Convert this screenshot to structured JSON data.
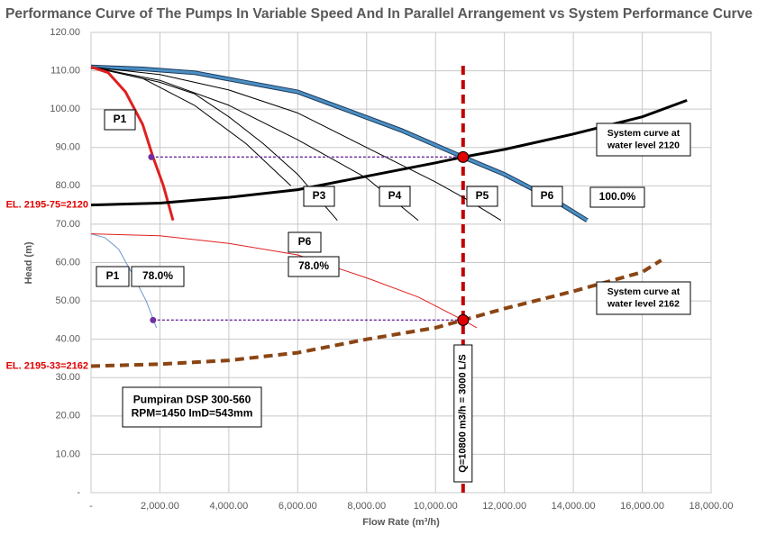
{
  "chart_data": {
    "type": "line",
    "title": "Performance Curve of The Pumps In Variable Speed And In Parallel Arrangement vs System Performance Curve",
    "xlabel": "Flow Rate (m³/h)",
    "ylabel": "Head (m)",
    "xlim": [
      0,
      18000
    ],
    "ylim": [
      0,
      120
    ],
    "grid": true,
    "xticks": [
      {
        "value": 0,
        "label": "-"
      },
      {
        "value": 2000,
        "label": "2,000.00"
      },
      {
        "value": 4000,
        "label": "4,000.00"
      },
      {
        "value": 6000,
        "label": "6,000.00"
      },
      {
        "value": 8000,
        "label": "8,000.00"
      },
      {
        "value": 10000,
        "label": "10,000.00"
      },
      {
        "value": 12000,
        "label": "12,000.00"
      },
      {
        "value": 14000,
        "label": "14,000.00"
      },
      {
        "value": 16000,
        "label": "16,000.00"
      },
      {
        "value": 18000,
        "label": "18,000.00"
      }
    ],
    "yticks": [
      {
        "value": 0,
        "label": "-"
      },
      {
        "value": 10,
        "label": "10.00"
      },
      {
        "value": 20,
        "label": "20.00"
      },
      {
        "value": 30,
        "label": "30.00"
      },
      {
        "value": 40,
        "label": "40.00"
      },
      {
        "value": 50,
        "label": "50.00"
      },
      {
        "value": 60,
        "label": "60.00"
      },
      {
        "value": 70,
        "label": "70.00"
      },
      {
        "value": 80,
        "label": "80.00"
      },
      {
        "value": 90,
        "label": "90.00"
      },
      {
        "value": 100,
        "label": "100.00"
      },
      {
        "value": 110,
        "label": "110.00"
      },
      {
        "value": 120,
        "label": "120.00"
      }
    ],
    "series": [
      {
        "color": "#4a8fc4",
        "style": "outlined",
        "x": [
          0,
          1500,
          3000,
          4500,
          6000,
          7500,
          9000,
          10800,
          12000,
          13500,
          14400
        ],
        "values": [
          111,
          110.5,
          109.5,
          107,
          104.5,
          99.5,
          94.5,
          87.5,
          83,
          76,
          71
        ]
      },
      {
        "color": "#000000",
        "style": "thin",
        "x": [
          0,
          2000,
          4000,
          6000,
          8000,
          10000,
          11000,
          11900
        ],
        "values": [
          111,
          109,
          105,
          99,
          90,
          81,
          76,
          71
        ]
      },
      {
        "color": "#000000",
        "style": "thin",
        "x": [
          0,
          2000,
          4000,
          6000,
          8000,
          9500
        ],
        "values": [
          111,
          107.5,
          101,
          92,
          82,
          71
        ]
      },
      {
        "color": "#000000",
        "style": "thin",
        "x": [
          0,
          2000,
          3000,
          4000,
          5000,
          6000,
          7150
        ],
        "values": [
          111,
          107,
          104,
          98,
          91,
          83,
          71
        ]
      },
      {
        "color": "#000000",
        "style": "thin",
        "x": [
          0,
          1500,
          3000,
          4500,
          5800
        ],
        "values": [
          111,
          108,
          101,
          91,
          80
        ]
      },
      {
        "color": "#e02020",
        "style": "thick",
        "x": [
          0,
          500,
          1000,
          1500,
          1800,
          2100,
          2380
        ],
        "values": [
          111,
          109.5,
          104.5,
          96,
          87.5,
          80,
          71
        ]
      },
      {
        "color": "#6f96d0",
        "style": "thin",
        "x": [
          0,
          400,
          800,
          1200,
          1600,
          1900
        ],
        "values": [
          67.5,
          66.5,
          63.5,
          57,
          50,
          43
        ]
      },
      {
        "color": "#e02020",
        "style": "thin",
        "x": [
          0,
          2000,
          4000,
          6000,
          8000,
          9500,
          10800,
          11200
        ],
        "values": [
          67.5,
          67,
          65,
          62,
          56,
          51,
          45,
          43
        ]
      },
      {
        "color": "#000000",
        "style": "thick",
        "x": [
          0,
          2000,
          4000,
          6000,
          8000,
          10000,
          10800,
          12000,
          14000,
          16000,
          17300
        ],
        "values": [
          75,
          75.5,
          77,
          79,
          82.5,
          86,
          87.5,
          89.5,
          93.5,
          98,
          102.3
        ]
      },
      {
        "color": "#8b4513",
        "style": "dashed",
        "x": [
          0,
          2000,
          4000,
          6000,
          8000,
          10000,
          10800,
          12000,
          14000,
          16000,
          16550
        ],
        "values": [
          33,
          33.5,
          34.5,
          36.5,
          40,
          43,
          45,
          48,
          52.5,
          57.5,
          60.6
        ]
      },
      {
        "color": "#7030a0",
        "style": "dotted",
        "x": [
          1750,
          10800
        ],
        "values": [
          87.5,
          87.5
        ]
      },
      {
        "color": "#7030a0",
        "style": "dotted",
        "x": [
          1800,
          10800
        ],
        "values": [
          45,
          45
        ]
      },
      {
        "color": "#7030a0",
        "style": "dots",
        "x": [
          1750,
          1800
        ],
        "values": [
          87.5,
          45
        ]
      },
      {
        "color": "#e00000",
        "style": "circles",
        "x": [
          10800,
          10800
        ],
        "values": [
          87.5,
          45
        ]
      }
    ],
    "vline": {
      "x": 10800,
      "color": "#c00000",
      "label": "Q=10800 m3/h = 3000 L/S"
    },
    "level_labels": [
      {
        "text": "EL. 2195-75=2120",
        "y": 75,
        "color": "#e00000"
      },
      {
        "text": "EL. 2195-33=2162",
        "y": 33,
        "color": "#e00000"
      }
    ],
    "annotations": [
      {
        "lines": [
          "P1"
        ]
      },
      {
        "lines": [
          "P3"
        ]
      },
      {
        "lines": [
          "P4"
        ]
      },
      {
        "lines": [
          "P5"
        ]
      },
      {
        "lines": [
          "P6"
        ]
      },
      {
        "lines": [
          "100.0%"
        ]
      },
      {
        "lines": [
          "System curve at",
          "water level 2120"
        ]
      },
      {
        "lines": [
          "P6"
        ]
      },
      {
        "lines": [
          "78.0%"
        ]
      },
      {
        "lines": [
          "P1"
        ]
      },
      {
        "lines": [
          "78.0%"
        ]
      },
      {
        "lines": [
          "System curve at",
          "water level 2162"
        ]
      },
      {
        "lines": [
          "Pumpiran DSP 300-560",
          "RPM=1450 ImD=543mm"
        ]
      }
    ]
  }
}
